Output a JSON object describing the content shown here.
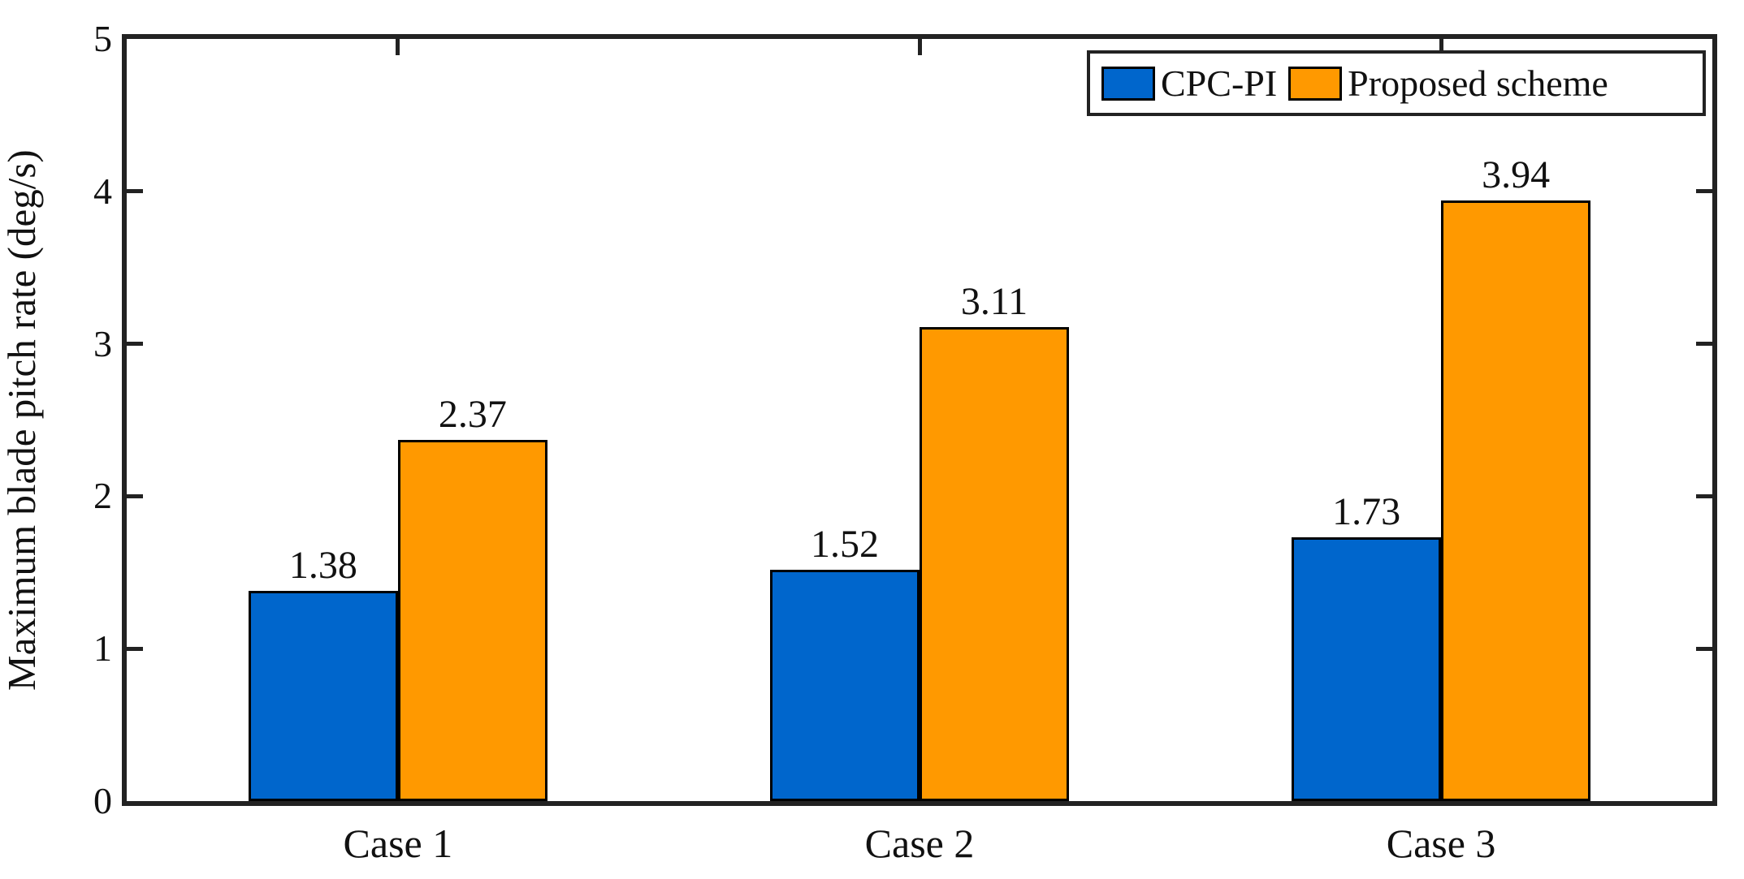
{
  "chart_data": {
    "type": "bar",
    "title": "",
    "categories": [
      "Case 1",
      "Case 2",
      "Case 3"
    ],
    "series": [
      {
        "name": "CPC-PI",
        "color": "#0066CC",
        "values": [
          1.38,
          1.52,
          1.73
        ],
        "value_labels": [
          "1.38",
          "1.52",
          "1.73"
        ]
      },
      {
        "name": "Proposed scheme",
        "color": "#FF9900",
        "values": [
          2.37,
          3.11,
          3.94
        ],
        "value_labels": [
          "2.37",
          "3.11",
          "3.94"
        ]
      }
    ],
    "xlabel": "",
    "ylabel": "Maximum blade pitch rate (deg/s)",
    "ylim": [
      0,
      5
    ],
    "ytick_labels": [
      "0",
      "1",
      "2",
      "3",
      "4",
      "5"
    ],
    "grid": false,
    "legend_position": "top-right-inside",
    "bar_edge_color": "#000000",
    "frame_color": "#222222",
    "background_color": "#ffffff"
  }
}
